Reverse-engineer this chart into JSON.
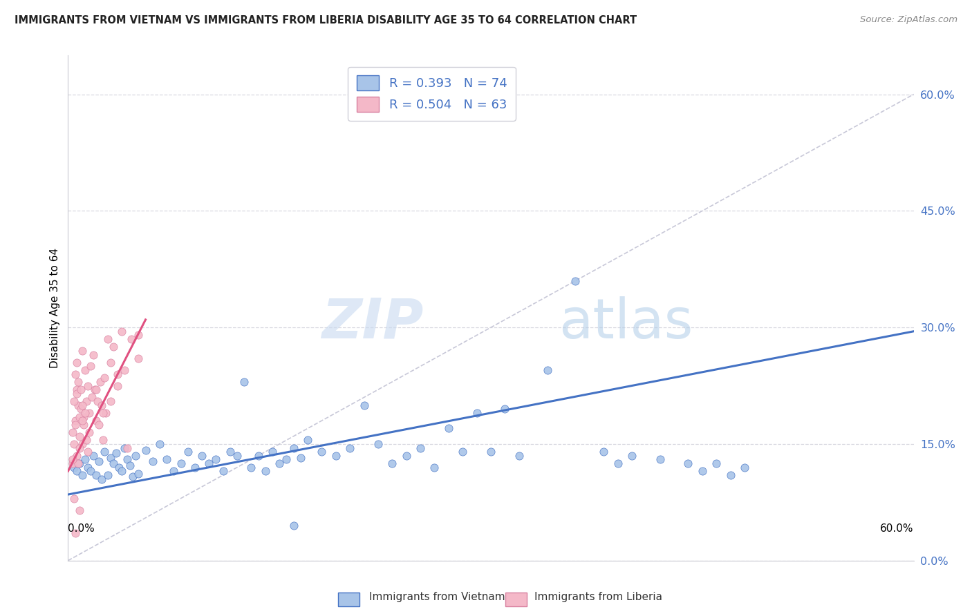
{
  "title": "IMMIGRANTS FROM VIETNAM VS IMMIGRANTS FROM LIBERIA DISABILITY AGE 35 TO 64 CORRELATION CHART",
  "source": "Source: ZipAtlas.com",
  "ylabel": "Disability Age 35 to 64",
  "ytick_values": [
    0.0,
    15.0,
    30.0,
    45.0,
    60.0
  ],
  "ytick_labels": [
    "0.0%",
    "15.0%",
    "30.0%",
    "45.0%",
    "60.0%"
  ],
  "xlim": [
    0.0,
    60.0
  ],
  "ylim": [
    6.0,
    65.0
  ],
  "legend1_label": "R = 0.393   N = 74",
  "legend2_label": "R = 0.504   N = 63",
  "scatter_color_viet": "#a8c4e8",
  "scatter_color_lib": "#f4b8c8",
  "line_color_viet": "#4472c4",
  "line_color_lib": "#e05080",
  "diagonal_color": "#c8c8d8",
  "watermark_zip": "ZIP",
  "watermark_atlas": "atlas",
  "bottom_legend_viet": "Immigrants from Vietnam",
  "bottom_legend_lib": "Immigrants from Liberia",
  "viet_points": [
    [
      0.4,
      12.0
    ],
    [
      0.6,
      11.5
    ],
    [
      0.8,
      12.5
    ],
    [
      1.0,
      11.0
    ],
    [
      1.2,
      13.0
    ],
    [
      1.4,
      12.0
    ],
    [
      1.6,
      11.5
    ],
    [
      1.8,
      13.5
    ],
    [
      2.0,
      11.0
    ],
    [
      2.2,
      12.8
    ],
    [
      2.4,
      10.5
    ],
    [
      2.6,
      14.0
    ],
    [
      2.8,
      11.0
    ],
    [
      3.0,
      13.2
    ],
    [
      3.2,
      12.5
    ],
    [
      3.4,
      13.8
    ],
    [
      3.6,
      12.0
    ],
    [
      3.8,
      11.5
    ],
    [
      4.0,
      14.5
    ],
    [
      4.2,
      13.0
    ],
    [
      4.4,
      12.2
    ],
    [
      4.6,
      10.8
    ],
    [
      4.8,
      13.5
    ],
    [
      5.0,
      11.2
    ],
    [
      5.5,
      14.2
    ],
    [
      6.0,
      12.8
    ],
    [
      6.5,
      15.0
    ],
    [
      7.0,
      13.0
    ],
    [
      7.5,
      11.5
    ],
    [
      8.0,
      12.5
    ],
    [
      8.5,
      14.0
    ],
    [
      9.0,
      12.0
    ],
    [
      9.5,
      13.5
    ],
    [
      10.0,
      12.5
    ],
    [
      10.5,
      13.0
    ],
    [
      11.0,
      11.5
    ],
    [
      11.5,
      14.0
    ],
    [
      12.0,
      13.5
    ],
    [
      12.5,
      23.0
    ],
    [
      13.0,
      12.0
    ],
    [
      13.5,
      13.5
    ],
    [
      14.0,
      11.5
    ],
    [
      14.5,
      14.0
    ],
    [
      15.0,
      12.5
    ],
    [
      15.5,
      13.0
    ],
    [
      16.0,
      14.5
    ],
    [
      16.5,
      13.2
    ],
    [
      17.0,
      15.5
    ],
    [
      18.0,
      14.0
    ],
    [
      19.0,
      13.5
    ],
    [
      20.0,
      14.5
    ],
    [
      21.0,
      20.0
    ],
    [
      22.0,
      15.0
    ],
    [
      23.0,
      12.5
    ],
    [
      24.0,
      13.5
    ],
    [
      25.0,
      14.5
    ],
    [
      26.0,
      12.0
    ],
    [
      27.0,
      17.0
    ],
    [
      28.0,
      14.0
    ],
    [
      29.0,
      19.0
    ],
    [
      30.0,
      14.0
    ],
    [
      31.0,
      19.5
    ],
    [
      32.0,
      13.5
    ],
    [
      34.0,
      24.5
    ],
    [
      36.0,
      36.0
    ],
    [
      38.0,
      14.0
    ],
    [
      39.0,
      12.5
    ],
    [
      40.0,
      13.5
    ],
    [
      42.0,
      13.0
    ],
    [
      44.0,
      12.5
    ],
    [
      45.0,
      11.5
    ],
    [
      46.0,
      12.5
    ],
    [
      47.0,
      11.0
    ],
    [
      48.0,
      12.0
    ],
    [
      16.0,
      4.5
    ]
  ],
  "lib_points": [
    [
      0.3,
      12.5
    ],
    [
      0.5,
      18.0
    ],
    [
      0.6,
      22.0
    ],
    [
      0.7,
      20.0
    ],
    [
      0.8,
      16.0
    ],
    [
      0.9,
      19.5
    ],
    [
      1.0,
      15.0
    ],
    [
      1.1,
      18.5
    ],
    [
      1.2,
      24.5
    ],
    [
      1.3,
      20.5
    ],
    [
      1.4,
      22.5
    ],
    [
      1.5,
      19.0
    ],
    [
      1.6,
      25.0
    ],
    [
      1.7,
      21.0
    ],
    [
      1.8,
      26.5
    ],
    [
      1.9,
      22.0
    ],
    [
      2.0,
      18.0
    ],
    [
      2.1,
      20.5
    ],
    [
      2.2,
      17.5
    ],
    [
      2.3,
      23.0
    ],
    [
      2.4,
      20.0
    ],
    [
      2.5,
      15.5
    ],
    [
      2.6,
      23.5
    ],
    [
      2.7,
      19.0
    ],
    [
      2.8,
      28.5
    ],
    [
      3.0,
      25.5
    ],
    [
      3.2,
      27.5
    ],
    [
      3.5,
      24.0
    ],
    [
      3.8,
      29.5
    ],
    [
      4.2,
      14.5
    ],
    [
      4.5,
      28.5
    ],
    [
      5.0,
      26.0
    ],
    [
      0.4,
      20.5
    ],
    [
      0.5,
      24.0
    ],
    [
      0.6,
      21.5
    ],
    [
      0.7,
      23.0
    ],
    [
      0.8,
      18.5
    ],
    [
      0.9,
      22.0
    ],
    [
      1.0,
      20.0
    ],
    [
      1.1,
      17.5
    ],
    [
      1.2,
      19.0
    ],
    [
      1.3,
      15.5
    ],
    [
      1.4,
      14.0
    ],
    [
      0.3,
      16.5
    ],
    [
      0.4,
      15.0
    ],
    [
      0.5,
      17.5
    ],
    [
      0.6,
      13.5
    ],
    [
      0.7,
      12.5
    ],
    [
      0.8,
      14.5
    ],
    [
      1.0,
      18.0
    ],
    [
      1.5,
      16.5
    ],
    [
      2.0,
      22.0
    ],
    [
      2.5,
      19.0
    ],
    [
      3.0,
      20.5
    ],
    [
      3.5,
      22.5
    ],
    [
      4.0,
      24.5
    ],
    [
      5.0,
      29.0
    ],
    [
      0.4,
      8.0
    ],
    [
      0.8,
      6.5
    ],
    [
      0.5,
      3.5
    ],
    [
      0.3,
      13.0
    ],
    [
      0.6,
      25.5
    ],
    [
      1.0,
      27.0
    ]
  ],
  "viet_line": {
    "x0": 0.0,
    "y0": 8.5,
    "x1": 60.0,
    "y1": 29.5
  },
  "lib_line": {
    "x0": 0.0,
    "y0": 11.5,
    "x1": 5.5,
    "y1": 31.0
  },
  "diag_line": {
    "x0": 0.0,
    "y0": 0.0,
    "x1": 60.0,
    "y1": 60.0
  }
}
